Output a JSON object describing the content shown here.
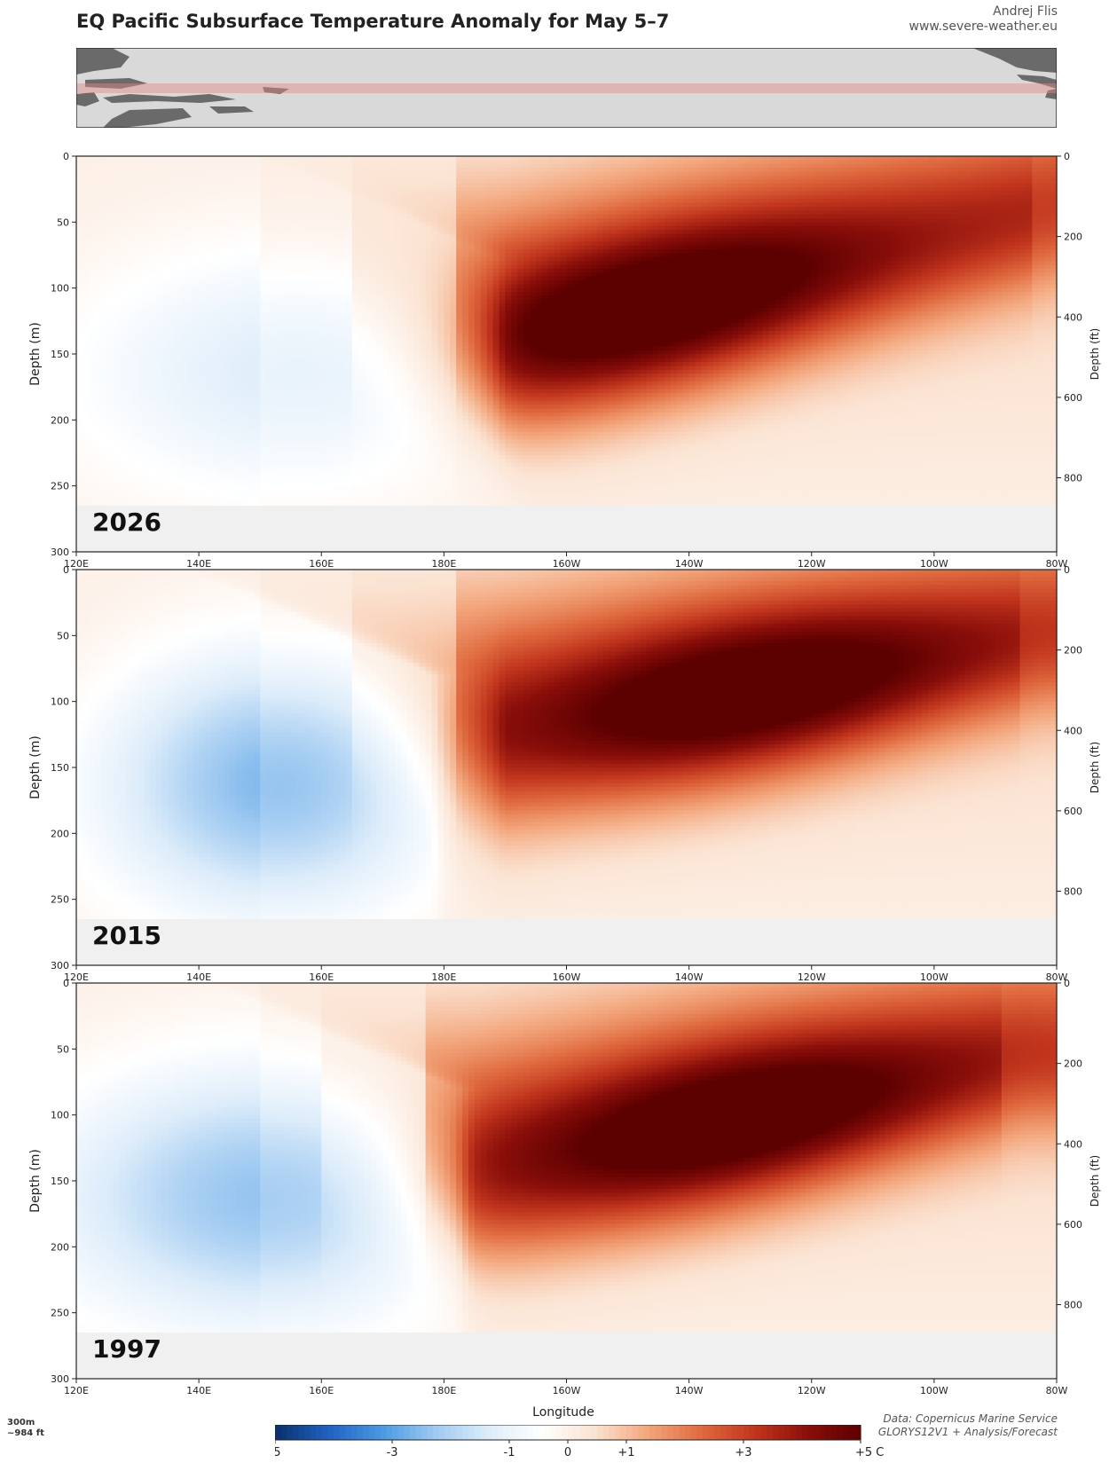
{
  "header": {
    "title": "EQ Pacific Subsurface Temperature Anomaly for May 5–7",
    "author": "Andrej Flis",
    "website": "www.severe-weather.eu"
  },
  "footer": {
    "depth_note_m": "300m",
    "depth_note_ft": "~984 ft",
    "source_line1": "Data: Copernicus Marine Service",
    "source_line2": "GLORYS12V1 + Analysis/Forecast"
  },
  "colors": {
    "scale": [
      "#08306b",
      "#1f62c3",
      "#4a98e0",
      "#9ec9f1",
      "#dcecfa",
      "#ffffff",
      "#fbe3d2",
      "#f3a67c",
      "#e06a3f",
      "#c1351d",
      "#8a0e0a",
      "#5c0000"
    ],
    "no_data": "#f0f0f0"
  },
  "chart_data": {
    "type": "heatmap",
    "xlabel": "Longitude",
    "ylabel": "Depth (m)",
    "ylabel_right": "Depth (ft)",
    "x_ticks": [
      "120E",
      "140E",
      "160E",
      "180E",
      "160W",
      "140W",
      "120W",
      "100W",
      "80W"
    ],
    "x_range_deg_east": [
      120,
      280
    ],
    "y_ticks": [
      0,
      50,
      100,
      150,
      200,
      250,
      300
    ],
    "y_range_m": [
      0,
      300
    ],
    "y_ticks_ft": [
      0,
      200,
      400,
      600,
      800
    ],
    "data_max_depth_m": 265,
    "colorbar": {
      "range": [
        -5,
        5
      ],
      "ticks": [
        "-5",
        "-3",
        "-1",
        "0",
        "+1",
        "+3",
        "+5 C"
      ]
    },
    "panels": [
      {
        "year": "2026",
        "cold_anomaly": {
          "lon_east": [
            122,
            190
          ],
          "depth_m": [
            30,
            265
          ],
          "peak_c": -1.3
        },
        "warm_core": {
          "lon_west_start": 170,
          "depth_m_west": 145,
          "lon_west_end": 80,
          "depth_m_east": 45,
          "peak_c": 5
        },
        "warm_peak_lon_w": [
          150,
          140
        ],
        "warm_peak_depth_m": [
          110,
          160
        ]
      },
      {
        "year": "2015",
        "cold_anomaly": {
          "lon_east": [
            128,
            178
          ],
          "depth_m": [
            30,
            265
          ],
          "peak_c": -2.5
        },
        "warm_core": {
          "lon_west_start": 170,
          "depth_m_west": 130,
          "lon_west_end": 82,
          "depth_m_east": 55,
          "peak_c": 5
        },
        "warm_peak_lon_w": [
          140,
          120
        ],
        "warm_peak_depth_m": [
          60,
          120
        ]
      },
      {
        "year": "1997",
        "cold_anomaly": {
          "lon_east": [
            120,
            182
          ],
          "depth_m": [
            20,
            265
          ],
          "peak_c": -2.3
        },
        "warm_core": {
          "lon_west_start": 175,
          "depth_m_west": 150,
          "lon_west_end": 85,
          "depth_m_east": 60,
          "peak_c": 5
        },
        "warm_peak_lon_w": [
          150,
          115
        ],
        "warm_peak_depth_m": [
          80,
          160
        ]
      }
    ]
  }
}
